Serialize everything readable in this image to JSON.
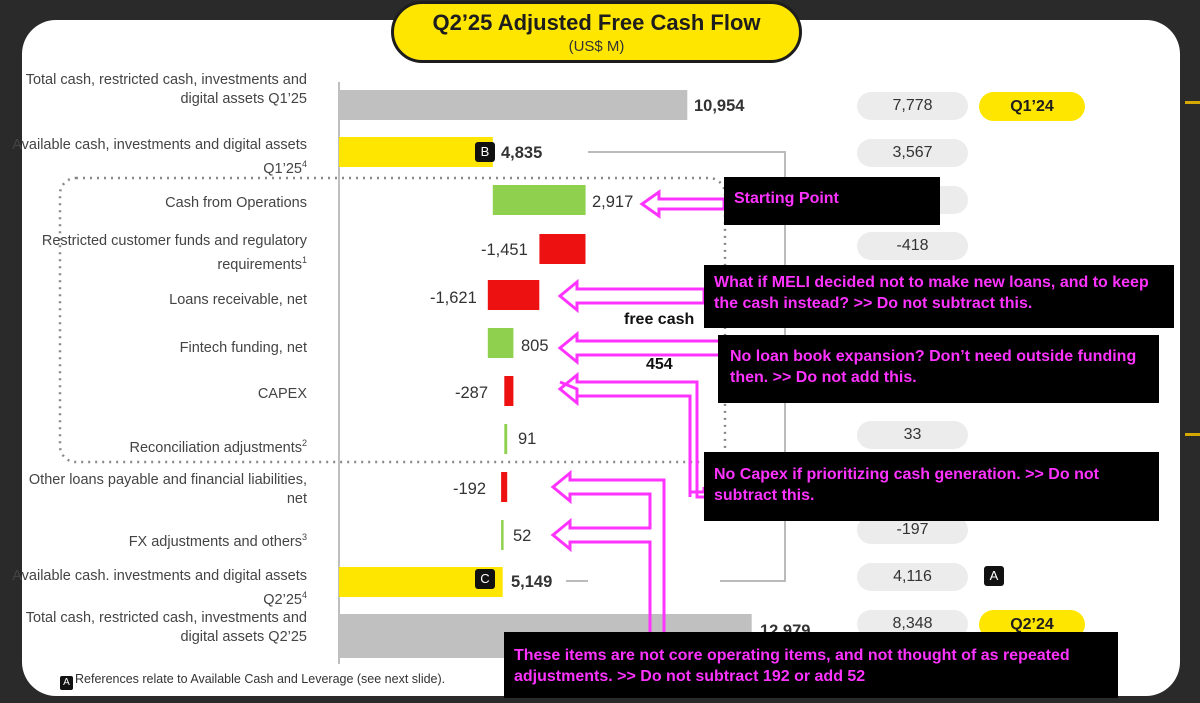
{
  "title": "Q2’25 Adjusted Free Cash Flow",
  "subtitle": "(US$ M)",
  "footnote": {
    "marker": "A",
    "text": "References relate to Available Cash and Leverage (see next slide)."
  },
  "markers": {
    "b": "B",
    "c": "C",
    "a": "A"
  },
  "period_pills": {
    "q1": "Q1’24",
    "q2": "Q2’24"
  },
  "comparison_values": [
    "7,778",
    "3,567",
    "-418",
    "33",
    "-197",
    "4,116",
    "8,348"
  ],
  "free_cash_overlay": {
    "label": "free cash",
    "value": "454"
  },
  "callouts": {
    "starting": "Starting Point",
    "loans": "What if MELI decided not to make new loans, and to keep the cash instead? >> Do not subtract this.",
    "funding": "No loan book expansion? Don’t need outside funding then. >> Do not add this.",
    "capex": "No Capex if prioritizing cash generation. >> Do not subtract this.",
    "other": "These items are not core operating items, and not thought of as repeated adjustments. >> Do not subtract 192 or add 52"
  },
  "chart_data": {
    "type": "bar",
    "orientation": "horizontal-waterfall",
    "title": "Q2’25 Adjusted Free Cash Flow",
    "unit": "US$ M",
    "colors": {
      "total": "#c0c0c0",
      "available": "#ffe600",
      "positive": "#8fd14f",
      "negative": "#ee1111"
    },
    "rows": [
      {
        "label": "Total cash, restricted cash, investments and digital assets Q1’25",
        "value": 10954,
        "display": "10,954",
        "kind": "total",
        "sup": ""
      },
      {
        "label": "Available cash, investments and digital assets Q1’25",
        "value": 4835,
        "display": "4,835",
        "kind": "available",
        "sup": "4"
      },
      {
        "label": "Cash from Operations",
        "value": 2917,
        "display": "2,917",
        "kind": "delta",
        "sup": ""
      },
      {
        "label": "Restricted customer funds and regulatory requirements",
        "value": -1451,
        "display": "-1,451",
        "kind": "delta",
        "sup": "1"
      },
      {
        "label": "Loans receivable, net",
        "value": -1621,
        "display": "-1,621",
        "kind": "delta",
        "sup": ""
      },
      {
        "label": "Fintech funding, net",
        "value": 805,
        "display": "805",
        "kind": "delta",
        "sup": ""
      },
      {
        "label": "CAPEX",
        "value": -287,
        "display": "-287",
        "kind": "delta",
        "sup": ""
      },
      {
        "label": "Reconciliation adjustments",
        "value": 91,
        "display": "91",
        "kind": "delta",
        "sup": "2"
      },
      {
        "label": "Other loans payable and financial liabilities, net",
        "value": -192,
        "display": "-192",
        "kind": "delta",
        "sup": ""
      },
      {
        "label": "FX adjustments and others",
        "value": 52,
        "display": "52",
        "kind": "delta",
        "sup": "3"
      },
      {
        "label": "Available cash. investments and digital assets Q2’25",
        "value": 5149,
        "display": "5,149",
        "kind": "available",
        "sup": "4"
      },
      {
        "label": "Total cash, restricted cash, investments and digital assets Q2’25",
        "value": 12979,
        "display": "12,979",
        "kind": "total",
        "sup": ""
      }
    ]
  }
}
